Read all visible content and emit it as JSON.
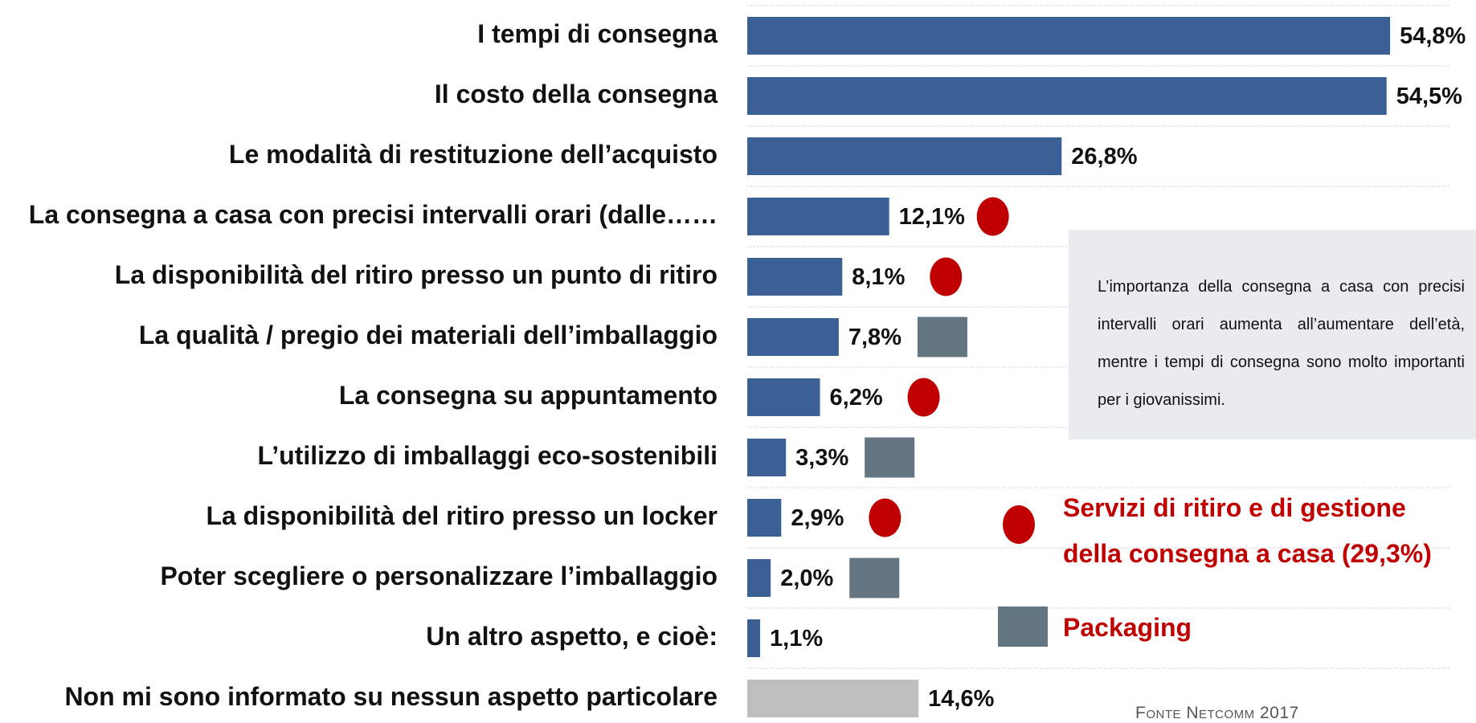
{
  "chart_data": {
    "type": "bar",
    "orientation": "horizontal",
    "categories": [
      "I tempi di consegna",
      "Il costo della consegna",
      "Le modalità di restituzione dell’acquisto",
      "La consegna a casa con precisi intervalli orari (dalle……",
      "La disponibilità del ritiro presso un punto di ritiro",
      "La qualità / pregio dei materiali dell’imballaggio",
      "La consegna su appuntamento",
      "L’utilizzo di imballaggi eco-sostenibili",
      "La disponibilità del ritiro presso un locker",
      "Poter scegliere o personalizzare l’imballaggio",
      "Un altro aspetto, e cioè:",
      "Non mi sono informato su nessun aspetto particolare"
    ],
    "values": [
      54.8,
      54.5,
      26.8,
      12.1,
      8.1,
      7.8,
      6.2,
      3.3,
      2.9,
      2.0,
      1.1,
      14.6
    ],
    "value_labels": [
      "54,8%",
      "54,5%",
      "26,8%",
      "12,1%",
      "8,1%",
      "7,8%",
      "6,2%",
      "3,3%",
      "2,9%",
      "2,0%",
      "1,1%",
      "14,6%"
    ],
    "colors": [
      "#3a6095",
      "#3a6095",
      "#3a6095",
      "#3a6095",
      "#3a6095",
      "#3a6095",
      "#3a6095",
      "#3a6095",
      "#3a6095",
      "#3a6095",
      "#3a6095",
      "#bfbfbf"
    ],
    "groups": [
      {
        "name": "Servizi di ritiro e di gestione della consegna a casa (29,3%)",
        "color": "#c00000",
        "shape": "circle"
      },
      {
        "name": "Packaging",
        "color": "#637580",
        "shape": "square"
      }
    ],
    "group_of": [
      null,
      null,
      null,
      0,
      0,
      1,
      0,
      1,
      0,
      1,
      null,
      null
    ],
    "grid": true,
    "note": "L’importanza della consegna a casa con precisi intervalli orari aumenta all’aumentare dell’età, mentre i tempi di consegna sono molto importanti per i giovanissimi.",
    "source": "Fonte Netcomm 2017"
  }
}
